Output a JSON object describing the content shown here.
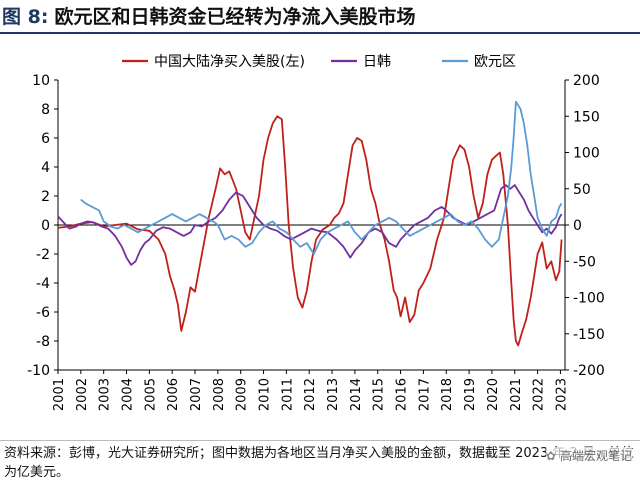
{
  "figure": {
    "label": "图 8:",
    "title": "欧元区和日韩资金已经转为净流入美股市场"
  },
  "source_note": "资料来源：彭博，光大证券研究所；图中数据为各地区当月净买入美股的金额，数据截至 2023 年 2 月，单位为亿美元。",
  "watermark": "高端宏观笔记",
  "colors": {
    "china": "#c0201b",
    "japan_korea": "#7030a0",
    "euro": "#5b9bd5",
    "title_accent": "#1f3864"
  },
  "chart_data": {
    "type": "line",
    "title": "",
    "legend": {
      "placement": "top",
      "entries": [
        "中国大陆净买入美股(左)",
        "日韩",
        "欧元区"
      ]
    },
    "grid": false,
    "x_range": [
      2001,
      2023.2
    ],
    "x_ticks": [
      "2001",
      "2002",
      "2003",
      "2004",
      "2005",
      "2006",
      "2007",
      "2008",
      "2009",
      "2010",
      "2011",
      "2012",
      "2013",
      "2014",
      "2015",
      "2016",
      "2017",
      "2018",
      "2019",
      "2020",
      "2021",
      "2022",
      "2023"
    ],
    "y_left": {
      "range": [
        -10,
        10
      ],
      "ticks": [
        "-10",
        "-8",
        "-6",
        "-4",
        "-2",
        "0",
        "2",
        "4",
        "6",
        "8",
        "10"
      ]
    },
    "y_right": {
      "range": [
        -200,
        200
      ],
      "ticks": [
        "-200",
        "-150",
        "-100",
        "-50",
        "0",
        "50",
        "100",
        "150",
        "200"
      ]
    },
    "series": [
      {
        "name": "中国大陆净买入美股(左)",
        "axis": "left",
        "color": "#c0201b",
        "points": [
          [
            2001.0,
            -0.2
          ],
          [
            2001.5,
            -0.1
          ],
          [
            2002.0,
            0.1
          ],
          [
            2002.5,
            0.2
          ],
          [
            2003.0,
            -0.1
          ],
          [
            2003.5,
            0.0
          ],
          [
            2004.0,
            0.1
          ],
          [
            2004.5,
            -0.3
          ],
          [
            2005.0,
            -0.4
          ],
          [
            2005.4,
            -1.0
          ],
          [
            2005.7,
            -2.0
          ],
          [
            2005.9,
            -3.5
          ],
          [
            2006.1,
            -4.5
          ],
          [
            2006.25,
            -5.5
          ],
          [
            2006.4,
            -7.3
          ],
          [
            2006.6,
            -6.0
          ],
          [
            2006.8,
            -4.3
          ],
          [
            2007.0,
            -4.6
          ],
          [
            2007.3,
            -2.0
          ],
          [
            2007.6,
            0.5
          ],
          [
            2007.9,
            2.5
          ],
          [
            2008.1,
            3.9
          ],
          [
            2008.3,
            3.5
          ],
          [
            2008.5,
            3.7
          ],
          [
            2008.8,
            2.5
          ],
          [
            2009.0,
            1.0
          ],
          [
            2009.2,
            -0.5
          ],
          [
            2009.4,
            -1.0
          ],
          [
            2009.6,
            0.5
          ],
          [
            2009.8,
            2.0
          ],
          [
            2010.0,
            4.5
          ],
          [
            2010.2,
            6.0
          ],
          [
            2010.4,
            7.0
          ],
          [
            2010.6,
            7.5
          ],
          [
            2010.8,
            7.3
          ],
          [
            2010.95,
            4.0
          ],
          [
            2011.1,
            0.0
          ],
          [
            2011.3,
            -3.0
          ],
          [
            2011.5,
            -5.0
          ],
          [
            2011.7,
            -5.7
          ],
          [
            2011.9,
            -4.5
          ],
          [
            2012.1,
            -2.5
          ],
          [
            2012.3,
            -1.0
          ],
          [
            2012.6,
            -0.3
          ],
          [
            2012.9,
            0.0
          ],
          [
            2013.1,
            0.5
          ],
          [
            2013.3,
            0.8
          ],
          [
            2013.5,
            1.5
          ],
          [
            2013.7,
            3.5
          ],
          [
            2013.9,
            5.5
          ],
          [
            2014.1,
            6.0
          ],
          [
            2014.3,
            5.8
          ],
          [
            2014.5,
            4.5
          ],
          [
            2014.7,
            2.5
          ],
          [
            2014.9,
            1.5
          ],
          [
            2015.1,
            0.0
          ],
          [
            2015.3,
            -1.0
          ],
          [
            2015.5,
            -2.5
          ],
          [
            2015.7,
            -4.5
          ],
          [
            2015.85,
            -5.0
          ],
          [
            2016.0,
            -6.3
          ],
          [
            2016.2,
            -5.0
          ],
          [
            2016.4,
            -6.7
          ],
          [
            2016.6,
            -6.2
          ],
          [
            2016.8,
            -4.5
          ],
          [
            2017.0,
            -4.0
          ],
          [
            2017.3,
            -3.0
          ],
          [
            2017.6,
            -1.0
          ],
          [
            2017.9,
            0.5
          ],
          [
            2018.1,
            2.5
          ],
          [
            2018.3,
            4.5
          ],
          [
            2018.6,
            5.5
          ],
          [
            2018.8,
            5.2
          ],
          [
            2019.0,
            4.0
          ],
          [
            2019.2,
            2.0
          ],
          [
            2019.4,
            0.5
          ],
          [
            2019.6,
            1.5
          ],
          [
            2019.8,
            3.5
          ],
          [
            2020.0,
            4.5
          ],
          [
            2020.2,
            4.8
          ],
          [
            2020.35,
            5.0
          ],
          [
            2020.5,
            3.5
          ],
          [
            2020.7,
            0.0
          ],
          [
            2020.85,
            -4.0
          ],
          [
            2020.95,
            -6.5
          ],
          [
            2021.05,
            -8.0
          ],
          [
            2021.15,
            -8.3
          ],
          [
            2021.3,
            -7.5
          ],
          [
            2021.5,
            -6.5
          ],
          [
            2021.7,
            -5.0
          ],
          [
            2021.85,
            -3.5
          ],
          [
            2022.0,
            -2.0
          ],
          [
            2022.2,
            -1.2
          ],
          [
            2022.4,
            -3.0
          ],
          [
            2022.6,
            -2.5
          ],
          [
            2022.8,
            -3.8
          ],
          [
            2022.95,
            -3.2
          ],
          [
            2023.05,
            -1.0
          ]
        ]
      },
      {
        "name": "日韩",
        "axis": "right",
        "color": "#7030a0",
        "points": [
          [
            2001.0,
            12
          ],
          [
            2001.2,
            5
          ],
          [
            2001.5,
            -5
          ],
          [
            2001.8,
            -2
          ],
          [
            2002.0,
            2
          ],
          [
            2002.3,
            5
          ],
          [
            2002.6,
            3
          ],
          [
            2002.9,
            -2
          ],
          [
            2003.2,
            -5
          ],
          [
            2003.5,
            -15
          ],
          [
            2003.8,
            -30
          ],
          [
            2004.0,
            -45
          ],
          [
            2004.2,
            -55
          ],
          [
            2004.4,
            -50
          ],
          [
            2004.6,
            -35
          ],
          [
            2004.8,
            -25
          ],
          [
            2005.0,
            -20
          ],
          [
            2005.3,
            -8
          ],
          [
            2005.6,
            -3
          ],
          [
            2005.9,
            -5
          ],
          [
            2006.2,
            -10
          ],
          [
            2006.5,
            -15
          ],
          [
            2006.8,
            -10
          ],
          [
            2007.0,
            0
          ],
          [
            2007.3,
            -2
          ],
          [
            2007.6,
            5
          ],
          [
            2007.9,
            10
          ],
          [
            2008.2,
            20
          ],
          [
            2008.5,
            35
          ],
          [
            2008.8,
            45
          ],
          [
            2009.1,
            40
          ],
          [
            2009.4,
            25
          ],
          [
            2009.7,
            10
          ],
          [
            2010.0,
            0
          ],
          [
            2010.3,
            -5
          ],
          [
            2010.6,
            -8
          ],
          [
            2010.9,
            -15
          ],
          [
            2011.2,
            -20
          ],
          [
            2011.5,
            -15
          ],
          [
            2011.8,
            -10
          ],
          [
            2012.1,
            -5
          ],
          [
            2012.4,
            -8
          ],
          [
            2012.8,
            -10
          ],
          [
            2013.2,
            -20
          ],
          [
            2013.5,
            -30
          ],
          [
            2013.8,
            -45
          ],
          [
            2014.0,
            -35
          ],
          [
            2014.3,
            -25
          ],
          [
            2014.6,
            -10
          ],
          [
            2014.9,
            -5
          ],
          [
            2015.2,
            -10
          ],
          [
            2015.5,
            -25
          ],
          [
            2015.8,
            -30
          ],
          [
            2016.0,
            -20
          ],
          [
            2016.3,
            -10
          ],
          [
            2016.6,
            0
          ],
          [
            2016.9,
            5
          ],
          [
            2017.2,
            10
          ],
          [
            2017.5,
            20
          ],
          [
            2017.8,
            25
          ],
          [
            2018.0,
            20
          ],
          [
            2018.3,
            10
          ],
          [
            2018.6,
            5
          ],
          [
            2018.9,
            0
          ],
          [
            2019.2,
            5
          ],
          [
            2019.5,
            10
          ],
          [
            2019.8,
            15
          ],
          [
            2020.1,
            20
          ],
          [
            2020.4,
            50
          ],
          [
            2020.6,
            55
          ],
          [
            2020.8,
            50
          ],
          [
            2021.0,
            55
          ],
          [
            2021.2,
            45
          ],
          [
            2021.4,
            35
          ],
          [
            2021.6,
            20
          ],
          [
            2021.8,
            10
          ],
          [
            2022.0,
            0
          ],
          [
            2022.2,
            -10
          ],
          [
            2022.4,
            -5
          ],
          [
            2022.6,
            -12
          ],
          [
            2022.8,
            -3
          ],
          [
            2022.95,
            10
          ],
          [
            2023.05,
            15
          ]
        ]
      },
      {
        "name": "欧元区",
        "axis": "right",
        "color": "#5b9bd5",
        "points": [
          [
            2002.0,
            35
          ],
          [
            2002.2,
            30
          ],
          [
            2002.5,
            25
          ],
          [
            2002.8,
            20
          ],
          [
            2003.0,
            5
          ],
          [
            2003.3,
            -2
          ],
          [
            2003.6,
            -5
          ],
          [
            2003.9,
            0
          ],
          [
            2004.2,
            -5
          ],
          [
            2004.5,
            -10
          ],
          [
            2004.8,
            -5
          ],
          [
            2005.1,
            0
          ],
          [
            2005.4,
            5
          ],
          [
            2005.7,
            10
          ],
          [
            2006.0,
            15
          ],
          [
            2006.3,
            10
          ],
          [
            2006.6,
            5
          ],
          [
            2006.9,
            10
          ],
          [
            2007.2,
            15
          ],
          [
            2007.5,
            10
          ],
          [
            2007.8,
            5
          ],
          [
            2008.0,
            0
          ],
          [
            2008.3,
            -20
          ],
          [
            2008.6,
            -15
          ],
          [
            2008.9,
            -20
          ],
          [
            2009.2,
            -30
          ],
          [
            2009.5,
            -25
          ],
          [
            2009.8,
            -10
          ],
          [
            2010.1,
            0
          ],
          [
            2010.4,
            5
          ],
          [
            2010.7,
            -5
          ],
          [
            2011.0,
            -10
          ],
          [
            2011.3,
            -20
          ],
          [
            2011.6,
            -30
          ],
          [
            2011.9,
            -25
          ],
          [
            2012.2,
            -40
          ],
          [
            2012.5,
            -20
          ],
          [
            2012.8,
            -10
          ],
          [
            2013.1,
            -5
          ],
          [
            2013.4,
            0
          ],
          [
            2013.7,
            5
          ],
          [
            2014.0,
            -10
          ],
          [
            2014.3,
            -20
          ],
          [
            2014.6,
            -10
          ],
          [
            2014.9,
            0
          ],
          [
            2015.2,
            5
          ],
          [
            2015.5,
            10
          ],
          [
            2015.8,
            5
          ],
          [
            2016.1,
            -5
          ],
          [
            2016.4,
            -15
          ],
          [
            2016.7,
            -10
          ],
          [
            2017.0,
            -5
          ],
          [
            2017.3,
            0
          ],
          [
            2017.6,
            5
          ],
          [
            2017.9,
            10
          ],
          [
            2018.2,
            15
          ],
          [
            2018.5,
            5
          ],
          [
            2018.8,
            0
          ],
          [
            2019.1,
            5
          ],
          [
            2019.4,
            -5
          ],
          [
            2019.7,
            -20
          ],
          [
            2020.0,
            -30
          ],
          [
            2020.3,
            -20
          ],
          [
            2020.5,
            10
          ],
          [
            2020.7,
            40
          ],
          [
            2020.85,
            80
          ],
          [
            2020.95,
            120
          ],
          [
            2021.05,
            170
          ],
          [
            2021.15,
            165
          ],
          [
            2021.25,
            160
          ],
          [
            2021.4,
            140
          ],
          [
            2021.55,
            110
          ],
          [
            2021.7,
            70
          ],
          [
            2021.85,
            40
          ],
          [
            2022.0,
            10
          ],
          [
            2022.2,
            -5
          ],
          [
            2022.4,
            -15
          ],
          [
            2022.6,
            5
          ],
          [
            2022.8,
            10
          ],
          [
            2022.95,
            25
          ],
          [
            2023.05,
            30
          ]
        ]
      }
    ]
  }
}
